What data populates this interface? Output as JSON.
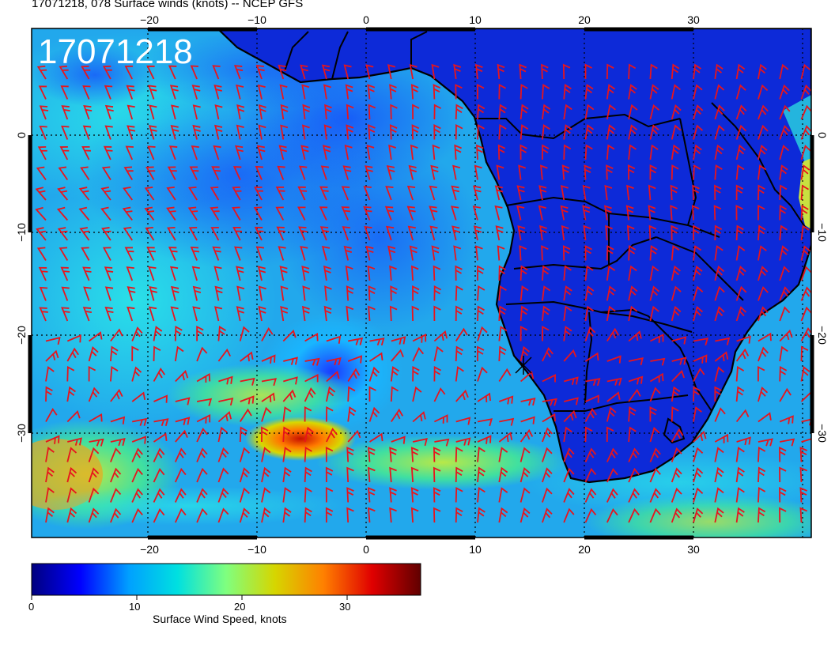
{
  "title": "17071218, 078 Surface winds (knots) -- NCEP GFS",
  "map_stamp": "17071218",
  "map": {
    "lon_ticks": [
      "−20",
      "−10",
      "0",
      "10",
      "20",
      "30"
    ],
    "lat_ticks": [
      "0",
      "−10",
      "−20",
      "−30"
    ],
    "gridline_style": "dotted",
    "barb_color": "#e8141c",
    "coast_color": "#000000"
  },
  "colorbar": {
    "title": "Surface Wind Speed, knots",
    "ticks": [
      "0",
      "10",
      "20",
      "30"
    ],
    "range_knots": [
      0,
      37
    ],
    "colormap": [
      "#00007f",
      "#0000ff",
      "#00a0ff",
      "#00e0e0",
      "#7fff7f",
      "#d6d600",
      "#ff8000",
      "#e00000",
      "#600000"
    ]
  }
}
